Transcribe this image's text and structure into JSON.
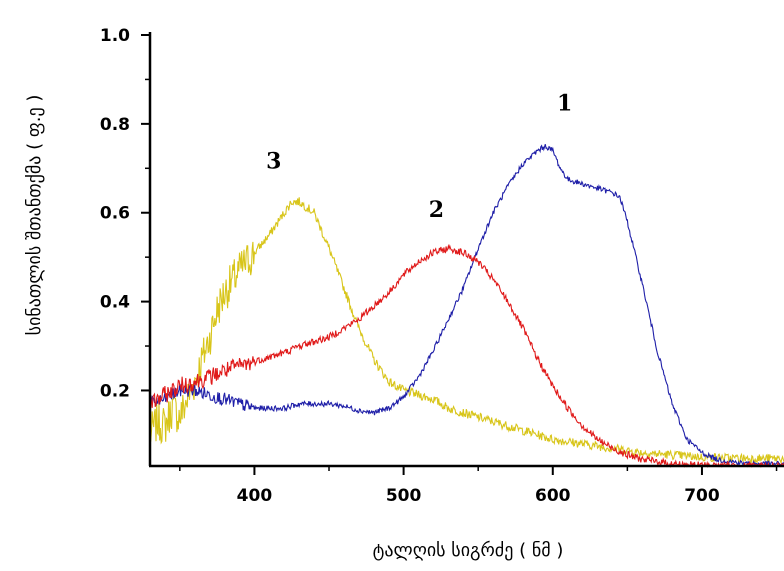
{
  "chart_data": {
    "type": "line",
    "title": "",
    "xlabel": "ტალღის სიგრძე ( ნმ )",
    "ylabel": "სინათლის შთანთქმა  ( ფ.ე )",
    "xlim": [
      330,
      755
    ],
    "ylim": [
      0.03,
      1.0
    ],
    "xticks": [
      "400",
      "500",
      "600",
      "700"
    ],
    "yticks": [
      "0.2",
      "0.4",
      "0.6",
      "0.8",
      "1.0"
    ],
    "grid": false,
    "legend": "none",
    "series": [
      {
        "label": "1",
        "color": "#1f1fa8",
        "x": [
          330,
          340,
          350,
          360,
          370,
          380,
          390,
          400,
          410,
          420,
          430,
          440,
          450,
          460,
          470,
          480,
          490,
          500,
          510,
          520,
          530,
          540,
          550,
          560,
          570,
          580,
          590,
          595,
          600,
          605,
          610,
          620,
          630,
          640,
          645,
          650,
          660,
          670,
          680,
          690,
          700,
          710,
          720,
          730,
          740,
          755
        ],
        "y": [
          0.17,
          0.18,
          0.2,
          0.2,
          0.19,
          0.18,
          0.17,
          0.16,
          0.16,
          0.16,
          0.17,
          0.17,
          0.17,
          0.165,
          0.155,
          0.15,
          0.16,
          0.185,
          0.23,
          0.29,
          0.36,
          0.43,
          0.52,
          0.6,
          0.66,
          0.71,
          0.74,
          0.75,
          0.74,
          0.7,
          0.675,
          0.665,
          0.655,
          0.645,
          0.635,
          0.58,
          0.44,
          0.29,
          0.17,
          0.09,
          0.06,
          0.045,
          0.04,
          0.035,
          0.035,
          0.035
        ]
      },
      {
        "label": "2",
        "color": "#e01a1a",
        "x": [
          330,
          340,
          350,
          360,
          370,
          380,
          390,
          400,
          410,
          420,
          430,
          440,
          450,
          460,
          470,
          480,
          490,
          500,
          510,
          520,
          530,
          540,
          550,
          560,
          570,
          580,
          590,
          600,
          610,
          620,
          630,
          640,
          650,
          660,
          670,
          680,
          690,
          700,
          710,
          730,
          755
        ],
        "y": [
          0.17,
          0.19,
          0.21,
          0.22,
          0.23,
          0.245,
          0.255,
          0.265,
          0.275,
          0.285,
          0.3,
          0.31,
          0.32,
          0.34,
          0.36,
          0.39,
          0.42,
          0.46,
          0.49,
          0.51,
          0.52,
          0.51,
          0.49,
          0.45,
          0.4,
          0.34,
          0.27,
          0.21,
          0.16,
          0.12,
          0.09,
          0.07,
          0.055,
          0.045,
          0.04,
          0.035,
          0.033,
          0.032,
          0.031,
          0.03,
          0.03
        ]
      },
      {
        "label": "3",
        "color": "#d8c51a",
        "x": [
          330,
          335,
          340,
          345,
          350,
          355,
          360,
          365,
          370,
          375,
          380,
          390,
          400,
          410,
          420,
          425,
          430,
          440,
          450,
          460,
          470,
          480,
          490,
          500,
          510,
          520,
          530,
          540,
          550,
          560,
          570,
          580,
          590,
          600,
          610,
          620,
          630,
          640,
          650,
          660,
          680,
          700,
          720,
          740,
          755
        ],
        "y": [
          0.1,
          0.13,
          0.12,
          0.16,
          0.14,
          0.18,
          0.22,
          0.27,
          0.32,
          0.38,
          0.42,
          0.47,
          0.51,
          0.55,
          0.6,
          0.625,
          0.625,
          0.6,
          0.52,
          0.43,
          0.34,
          0.27,
          0.22,
          0.2,
          0.19,
          0.18,
          0.16,
          0.15,
          0.14,
          0.13,
          0.12,
          0.11,
          0.1,
          0.09,
          0.085,
          0.08,
          0.075,
          0.07,
          0.065,
          0.06,
          0.055,
          0.05,
          0.048,
          0.047,
          0.047
        ]
      }
    ]
  }
}
